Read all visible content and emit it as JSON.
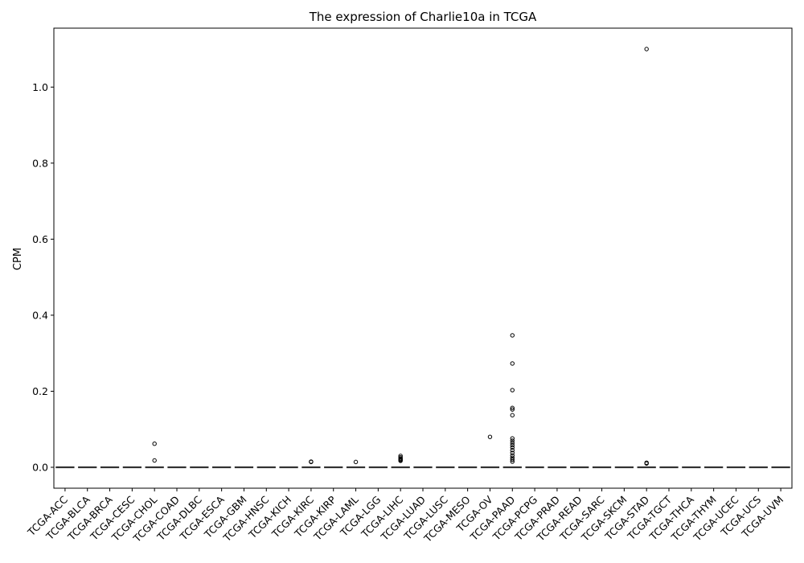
{
  "chart_data": {
    "type": "box",
    "title": "The expression of Charlie10a in TCGA",
    "xlabel": "",
    "ylabel": "CPM",
    "ylim": [
      -0.055,
      1.155
    ],
    "yticks": [
      0.0,
      0.2,
      0.4,
      0.6,
      0.8,
      1.0
    ],
    "ytick_labels": [
      "0.0",
      "0.2",
      "0.4",
      "0.6",
      "0.8",
      "1.0"
    ],
    "grid": false,
    "categories": [
      "TCGA-ACC",
      "TCGA-BLCA",
      "TCGA-BRCA",
      "TCGA-CESC",
      "TCGA-CHOL",
      "TCGA-COAD",
      "TCGA-DLBC",
      "TCGA-ESCA",
      "TCGA-GBM",
      "TCGA-HNSC",
      "TCGA-KICH",
      "TCGA-KIRC",
      "TCGA-KIRP",
      "TCGA-LAML",
      "TCGA-LGG",
      "TCGA-LIHC",
      "TCGA-LUAD",
      "TCGA-LUSC",
      "TCGA-MESO",
      "TCGA-OV",
      "TCGA-PAAD",
      "TCGA-PCPG",
      "TCGA-PRAD",
      "TCGA-READ",
      "TCGA-SARC",
      "TCGA-SKCM",
      "TCGA-STAD",
      "TCGA-TGCT",
      "TCGA-THCA",
      "TCGA-THYM",
      "TCGA-UCEC",
      "TCGA-UCS",
      "TCGA-UVM"
    ],
    "box_stats": {
      "q1": 0.0,
      "median": 0.0,
      "q3": 0.0,
      "whisker_low": 0.0,
      "whisker_high": 0.0
    },
    "outliers": {
      "TCGA-CHOL": [
        0.062,
        0.018
      ],
      "TCGA-KIRC": [
        0.015,
        0.014
      ],
      "TCGA-LAML": [
        0.014
      ],
      "TCGA-LIHC": [
        0.03,
        0.026,
        0.023,
        0.021,
        0.019,
        0.017
      ],
      "TCGA-OV": [
        0.08
      ],
      "TCGA-PAAD": [
        0.347,
        0.273,
        0.203,
        0.156,
        0.152,
        0.137,
        0.076,
        0.07,
        0.064,
        0.058,
        0.052,
        0.045,
        0.038,
        0.031,
        0.025,
        0.02,
        0.015
      ],
      "TCGA-STAD": [
        1.1,
        0.012,
        0.01
      ]
    },
    "colors": {
      "box": "#3b6ea5",
      "line": "#333333",
      "outlier": "#000000",
      "axis": "#000000"
    }
  }
}
